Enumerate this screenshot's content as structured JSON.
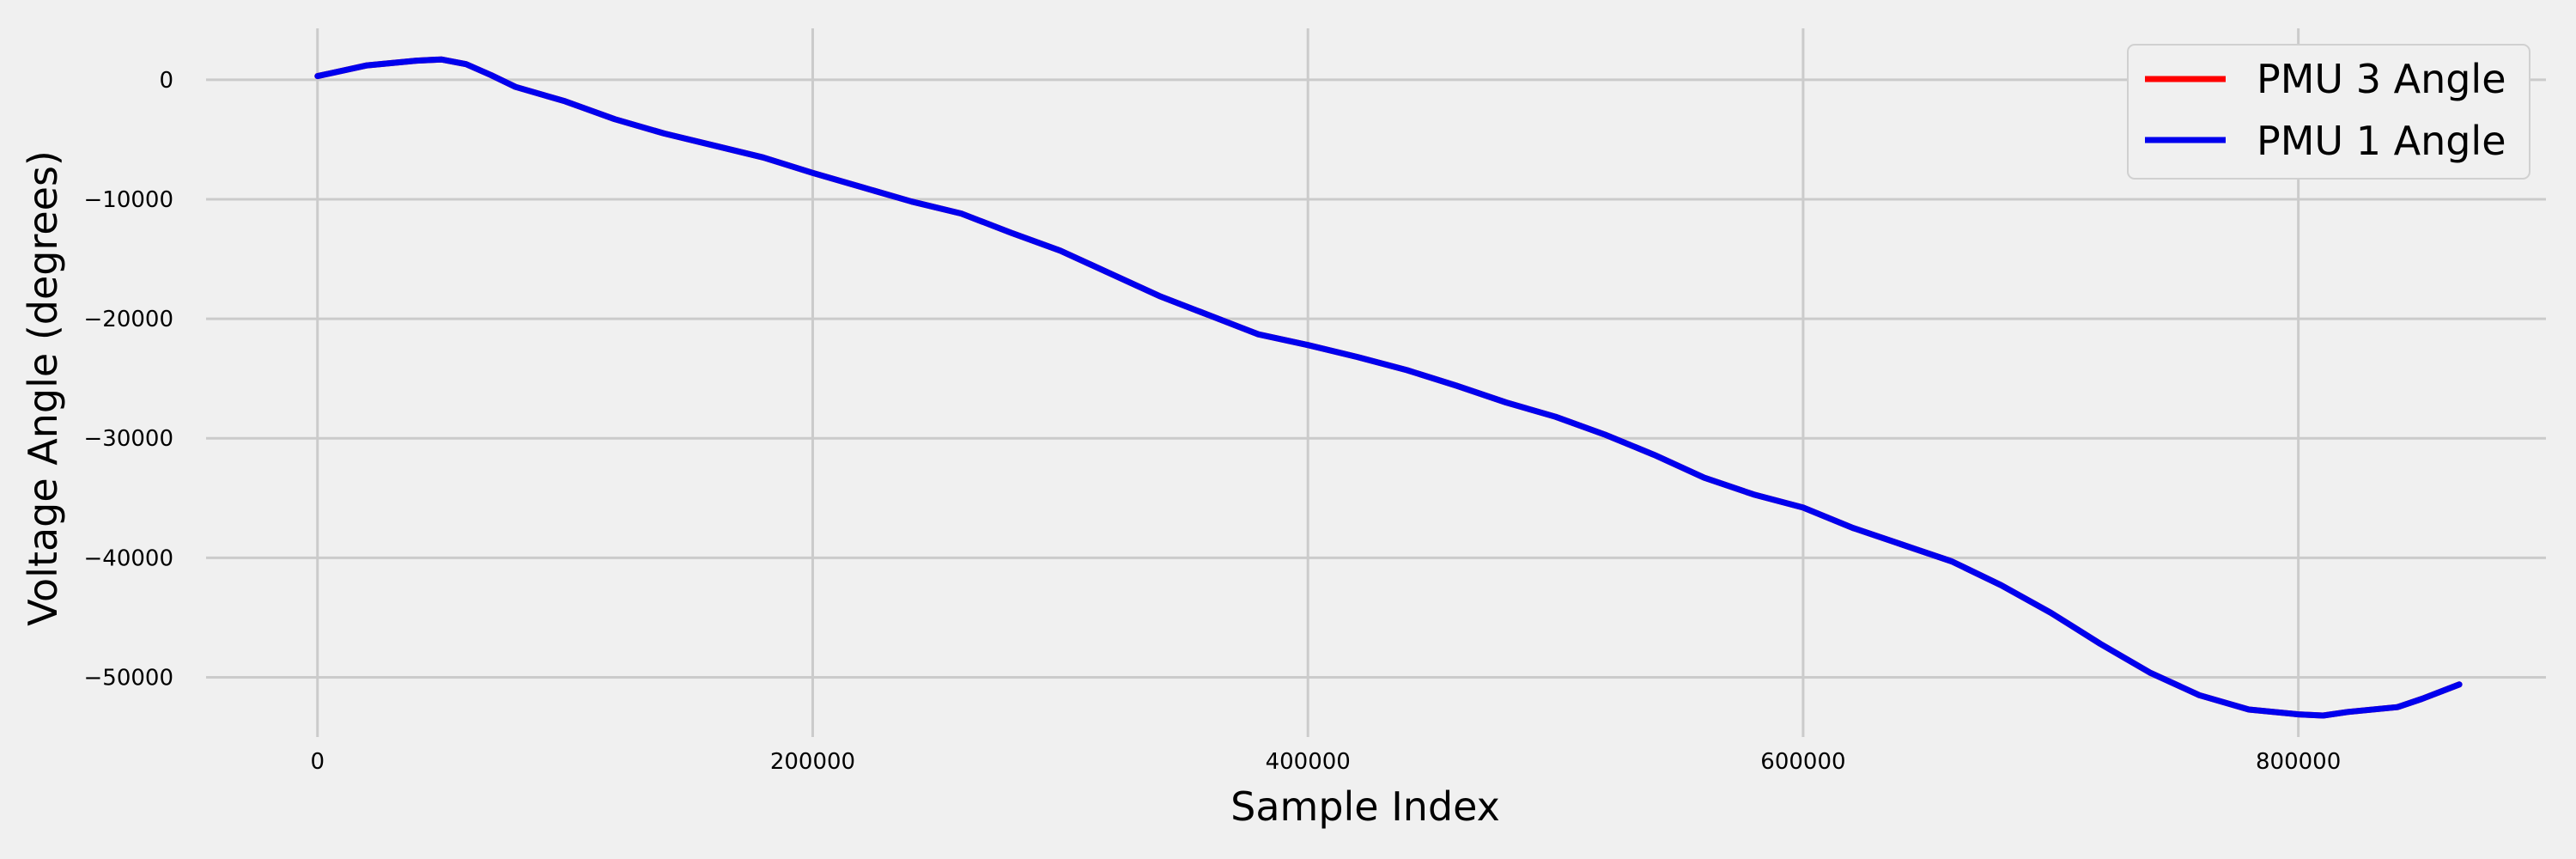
{
  "chart_data": {
    "type": "line",
    "title": "",
    "xlabel": "Sample Index",
    "ylabel": "Voltage Angle (degrees)",
    "xlim": [
      -45000,
      900000
    ],
    "ylim": [
      -55000,
      4300
    ],
    "x_ticks": [
      0,
      200000,
      400000,
      600000,
      800000
    ],
    "x_tick_labels": [
      "0",
      "200000",
      "400000",
      "600000",
      "800000"
    ],
    "y_ticks": [
      0,
      -10000,
      -20000,
      -30000,
      -40000,
      -50000
    ],
    "y_tick_labels": [
      "0",
      "−10000",
      "−20000",
      "−30000",
      "−40000",
      "−50000"
    ],
    "grid": true,
    "legend_position": "top-right",
    "series": [
      {
        "name": "PMU 3 Angle",
        "color": "#ff0000",
        "x": [
          0,
          20000,
          40000,
          50000,
          60000,
          70000,
          80000,
          100000,
          120000,
          140000,
          160000,
          180000,
          200000,
          220000,
          240000,
          260000,
          280000,
          300000,
          320000,
          340000,
          360000,
          380000,
          400000,
          420000,
          440000,
          460000,
          480000,
          500000,
          520000,
          540000,
          560000,
          580000,
          600000,
          620000,
          640000,
          660000,
          680000,
          700000,
          720000,
          740000,
          760000,
          780000,
          800000,
          810000,
          820000,
          840000,
          850000,
          865000
        ],
        "y": [
          300,
          1200,
          1600,
          1700,
          1300,
          400,
          -600,
          -1800,
          -3300,
          -4500,
          -5500,
          -6500,
          -7800,
          -9000,
          -10200,
          -11200,
          -12800,
          -14300,
          -16200,
          -18100,
          -19700,
          -21300,
          -22200,
          -23200,
          -24300,
          -25600,
          -27000,
          -28200,
          -29700,
          -31400,
          -33300,
          -34700,
          -35800,
          -37500,
          -38900,
          -40300,
          -42300,
          -44600,
          -47200,
          -49600,
          -51500,
          -52700,
          -53100,
          -53200,
          -52900,
          -52500,
          -51800,
          -50600
        ]
      },
      {
        "name": "PMU 1 Angle",
        "color": "#0000ee",
        "x": [
          0,
          20000,
          40000,
          50000,
          60000,
          70000,
          80000,
          100000,
          120000,
          140000,
          160000,
          180000,
          200000,
          220000,
          240000,
          260000,
          280000,
          300000,
          320000,
          340000,
          360000,
          380000,
          400000,
          420000,
          440000,
          460000,
          480000,
          500000,
          520000,
          540000,
          560000,
          580000,
          600000,
          620000,
          640000,
          660000,
          680000,
          700000,
          720000,
          740000,
          760000,
          780000,
          800000,
          810000,
          820000,
          840000,
          850000,
          865000
        ],
        "y": [
          300,
          1200,
          1600,
          1700,
          1300,
          400,
          -600,
          -1800,
          -3300,
          -4500,
          -5500,
          -6500,
          -7800,
          -9000,
          -10200,
          -11200,
          -12800,
          -14300,
          -16200,
          -18100,
          -19700,
          -21300,
          -22200,
          -23200,
          -24300,
          -25600,
          -27000,
          -28200,
          -29700,
          -31400,
          -33300,
          -34700,
          -35800,
          -37500,
          -38900,
          -40300,
          -42300,
          -44600,
          -47200,
          -49600,
          -51500,
          -52700,
          -53100,
          -53200,
          -52900,
          -52500,
          -51800,
          -50600
        ]
      }
    ]
  }
}
